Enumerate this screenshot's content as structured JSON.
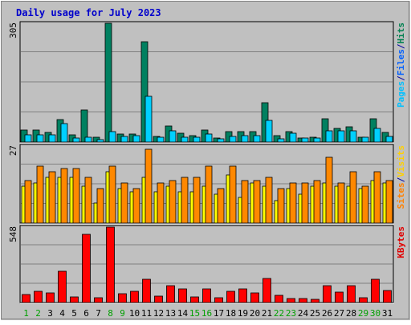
{
  "chart_data": [
    {
      "type": "bar",
      "title": "Daily usage for July 2023",
      "panel": "top",
      "ylim": [
        0,
        305
      ],
      "y_tick_label": "305",
      "grid": true,
      "categories": [
        "1",
        "2",
        "3",
        "4",
        "5",
        "6",
        "7",
        "8",
        "9",
        "10",
        "11",
        "12",
        "13",
        "14",
        "15",
        "16",
        "17",
        "18",
        "19",
        "20",
        "21",
        "22",
        "23",
        "24",
        "25",
        "26",
        "27",
        "28",
        "29",
        "30",
        "31"
      ],
      "legend": [
        {
          "text": "Pages",
          "color": "#00c0ff"
        },
        {
          "text": "/",
          "color": "#0000a0"
        },
        {
          "text": "Files",
          "color": "#0060ff"
        },
        {
          "text": "/",
          "color": "#0000a0"
        },
        {
          "text": "Hits",
          "color": "#008050"
        }
      ],
      "series": [
        {
          "name": "Hits",
          "color": "#008060",
          "values": [
            30,
            31,
            25,
            57,
            18,
            82,
            12,
            305,
            21,
            20,
            258,
            15,
            41,
            22,
            16,
            31,
            10,
            27,
            27,
            27,
            101,
            16,
            26,
            11,
            12,
            59,
            36,
            39,
            13,
            60,
            24
          ]
        },
        {
          "name": "Files",
          "color": "#00d0ff",
          "values": [
            19,
            19,
            19,
            48,
            11,
            13,
            6,
            26,
            15,
            16,
            118,
            13,
            29,
            12,
            12,
            21,
            8,
            15,
            17,
            16,
            55,
            9,
            22,
            10,
            11,
            29,
            29,
            28,
            12,
            35,
            14
          ]
        }
      ]
    },
    {
      "type": "bar",
      "panel": "middle",
      "ylim": [
        0,
        27
      ],
      "y_tick_label": "27",
      "grid": true,
      "legend": [
        {
          "text": "Sites",
          "color": "#ff8000"
        },
        {
          "text": "/",
          "color": "#0000a0"
        },
        {
          "text": "Visits",
          "color": "#ffd000"
        }
      ],
      "series": [
        {
          "name": "Visits",
          "color": "#ffff00",
          "values": [
            13,
            14,
            16,
            16,
            16,
            13,
            7,
            18,
            12,
            11,
            16,
            11,
            13,
            11,
            11,
            13,
            10,
            17,
            9,
            14,
            13,
            8,
            12,
            10,
            13,
            14,
            13,
            13,
            12,
            15,
            14
          ]
        },
        {
          "name": "Sites",
          "color": "#ff8800",
          "values": [
            15,
            20,
            18,
            19,
            19,
            16,
            12,
            20,
            14,
            12,
            26,
            14,
            15,
            16,
            16,
            20,
            12,
            20,
            15,
            15,
            16,
            12,
            14,
            14,
            15,
            23,
            14,
            18,
            13,
            18,
            15
          ]
        }
      ]
    },
    {
      "type": "bar",
      "panel": "bottom",
      "ylim": [
        0,
        548
      ],
      "y_tick_label": "548",
      "grid": true,
      "legend": [
        {
          "text": "KBytes",
          "color": "#e00000"
        }
      ],
      "series": [
        {
          "name": "KBytes",
          "color": "#ff0000",
          "values": [
            61,
            79,
            71,
            225,
            41,
            498,
            35,
            548,
            62,
            82,
            170,
            44,
            122,
            99,
            43,
            101,
            36,
            83,
            99,
            68,
            174,
            55,
            32,
            27,
            24,
            125,
            75,
            125,
            35,
            170,
            85
          ]
        }
      ]
    }
  ],
  "day_label_colors": {
    "weekday": "#000000",
    "weekend": "#00a000"
  },
  "weekend_days": [
    "1",
    "2",
    "8",
    "9",
    "15",
    "16",
    "22",
    "23",
    "29",
    "30"
  ]
}
